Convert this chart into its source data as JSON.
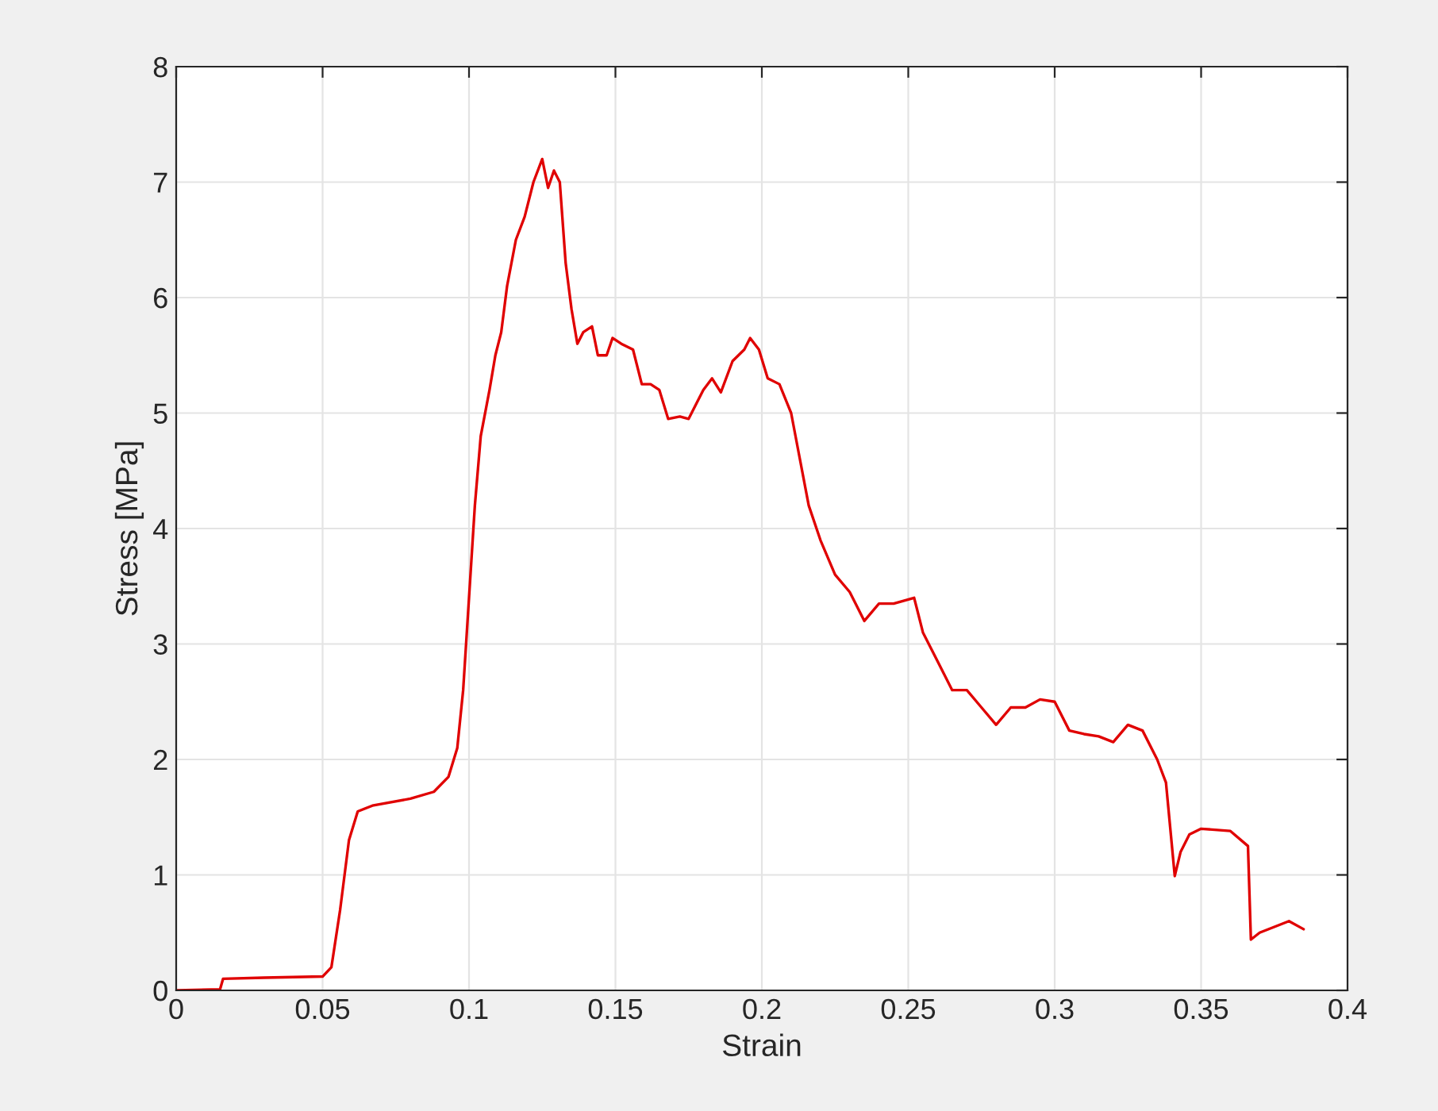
{
  "chart_data": {
    "type": "line",
    "xlabel": "Strain",
    "ylabel": "Stress [MPa]",
    "xlim": [
      0,
      0.4
    ],
    "ylim": [
      0,
      8
    ],
    "xticks": [
      0,
      0.05,
      0.1,
      0.15,
      0.2,
      0.25,
      0.3,
      0.35,
      0.4
    ],
    "yticks": [
      0,
      1,
      2,
      3,
      4,
      5,
      6,
      7,
      8
    ],
    "grid": true,
    "marker": "none",
    "line_style": "solid",
    "series": [
      {
        "color": "#e00000",
        "x": [
          0,
          0.015,
          0.016,
          0.03,
          0.05,
          0.053,
          0.056,
          0.059,
          0.062,
          0.067,
          0.08,
          0.088,
          0.093,
          0.096,
          0.098,
          0.1,
          0.102,
          0.104,
          0.107,
          0.109,
          0.111,
          0.113,
          0.116,
          0.119,
          0.122,
          0.125,
          0.127,
          0.129,
          0.131,
          0.133,
          0.135,
          0.137,
          0.139,
          0.142,
          0.144,
          0.147,
          0.149,
          0.152,
          0.156,
          0.159,
          0.162,
          0.165,
          0.168,
          0.172,
          0.175,
          0.18,
          0.183,
          0.186,
          0.19,
          0.194,
          0.196,
          0.199,
          0.202,
          0.206,
          0.21,
          0.213,
          0.216,
          0.22,
          0.225,
          0.23,
          0.235,
          0.24,
          0.245,
          0.252,
          0.255,
          0.26,
          0.265,
          0.27,
          0.275,
          0.28,
          0.285,
          0.29,
          0.295,
          0.3,
          0.305,
          0.31,
          0.315,
          0.32,
          0.325,
          0.33,
          0.335,
          0.338,
          0.341,
          0.343,
          0.346,
          0.35,
          0.36,
          0.366,
          0.367,
          0.37,
          0.38,
          0.385
        ],
        "values": [
          0,
          0.01,
          0.1,
          0.11,
          0.12,
          0.2,
          0.7,
          1.3,
          1.55,
          1.6,
          1.66,
          1.72,
          1.85,
          2.1,
          2.6,
          3.4,
          4.2,
          4.8,
          5.2,
          5.5,
          5.7,
          6.1,
          6.5,
          6.7,
          7.0,
          7.2,
          6.95,
          7.1,
          7.0,
          6.3,
          5.9,
          5.6,
          5.7,
          5.75,
          5.5,
          5.5,
          5.65,
          5.6,
          5.55,
          5.25,
          5.25,
          5.2,
          4.95,
          4.97,
          4.95,
          5.2,
          5.3,
          5.18,
          5.45,
          5.55,
          5.65,
          5.55,
          5.3,
          5.25,
          5.0,
          4.6,
          4.2,
          3.9,
          3.6,
          3.45,
          3.2,
          3.35,
          3.35,
          3.4,
          3.1,
          2.85,
          2.6,
          2.6,
          2.45,
          2.3,
          2.45,
          2.45,
          2.52,
          2.5,
          2.25,
          2.22,
          2.2,
          2.15,
          2.3,
          2.25,
          2.0,
          1.8,
          0.99,
          1.2,
          1.35,
          1.4,
          1.38,
          1.25,
          0.44,
          0.5,
          0.6,
          0.53
        ]
      }
    ]
  }
}
